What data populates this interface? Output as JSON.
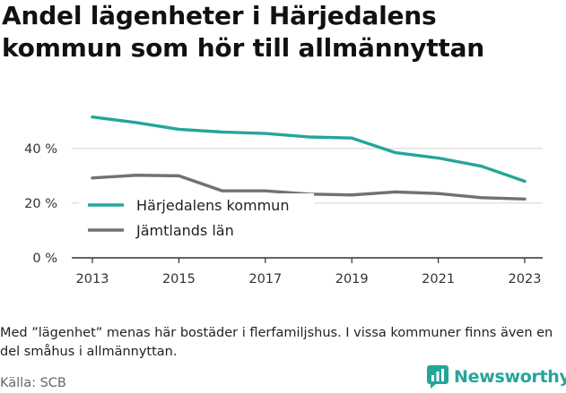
{
  "title": "Andel lägenheter i Härjedalens kommun som hör till allmännyttan",
  "note": "Med ”lägenhet” menas här bostäder i flerfamiljshus. I vissa kommuner finns även en del småhus i allmännyttan.",
  "source": "Källa: SCB",
  "brand": {
    "name": "Newsworthy",
    "icon": "newsworthy-logo-icon",
    "color": "#25a59a"
  },
  "chart_data": {
    "type": "line",
    "title": "Andel lägenheter i Härjedalens kommun som hör till allmännyttan",
    "xlabel": "",
    "ylabel": "",
    "x": [
      2013,
      2014,
      2015,
      2016,
      2017,
      2018,
      2019,
      2020,
      2021,
      2022,
      2023
    ],
    "x_ticks": [
      "2013",
      "2015",
      "2017",
      "2019",
      "2021",
      "2023"
    ],
    "y_ticks": [
      "0 %",
      "20 %",
      "40 %"
    ],
    "ylim": [
      0,
      55
    ],
    "grid": true,
    "legend_position": "left",
    "series": [
      {
        "name": "Härjedalens kommun",
        "color": "#25a59a",
        "values": [
          51.5,
          49.5,
          47,
          46,
          45.5,
          44.2,
          43.8,
          38.5,
          36.5,
          33.5,
          28
        ]
      },
      {
        "name": "Jämtlands län",
        "color": "#727077",
        "values": [
          29.2,
          30.2,
          30,
          24.5,
          24.5,
          23.3,
          23,
          24.1,
          23.5,
          22,
          21.5
        ]
      }
    ]
  }
}
